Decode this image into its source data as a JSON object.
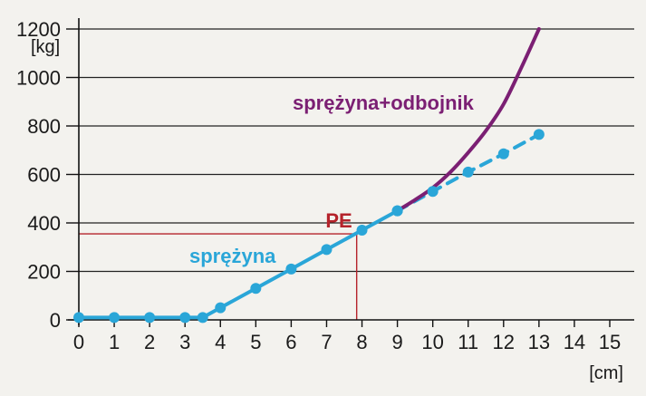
{
  "chart_data": {
    "type": "line",
    "title": "",
    "xlabel": "[cm]",
    "ylabel": "[kg]",
    "xlim": [
      0,
      15
    ],
    "ylim": [
      0,
      1200
    ],
    "xticks": [
      0,
      1,
      2,
      3,
      4,
      5,
      6,
      7,
      8,
      9,
      10,
      11,
      12,
      13,
      14,
      15
    ],
    "yticks": [
      0,
      200,
      400,
      600,
      800,
      1000,
      1200
    ],
    "grid": "horizontal",
    "series": [
      {
        "name": "sprężyna",
        "color": "#2aa6d8",
        "style": "solid-markers",
        "x": [
          0,
          1,
          2,
          3,
          3.5,
          4,
          5,
          6,
          7,
          8,
          9
        ],
        "y": [
          10,
          10,
          10,
          10,
          10,
          50,
          130,
          210,
          290,
          370,
          450
        ]
      },
      {
        "name": "",
        "color": "#2aa6d8",
        "style": "dashed-markers",
        "x": [
          9,
          10,
          11,
          12,
          13
        ],
        "y": [
          450,
          530,
          610,
          685,
          765
        ]
      },
      {
        "name": "sprężyna+odbojnik",
        "color": "#7b1f73",
        "style": "solid",
        "x": [
          9,
          9.5,
          10,
          10.5,
          11,
          11.5,
          12,
          12.5,
          13
        ],
        "y": [
          450,
          495,
          545,
          610,
          690,
          780,
          890,
          1040,
          1200
        ]
      }
    ],
    "annotations": [
      {
        "label": "PE",
        "x": 7.85,
        "y": 355,
        "color": "#b5232b"
      }
    ],
    "series_labels": {
      "spring": "sprężyna",
      "spring_bumper": "sprężyna+odbojnik"
    }
  }
}
